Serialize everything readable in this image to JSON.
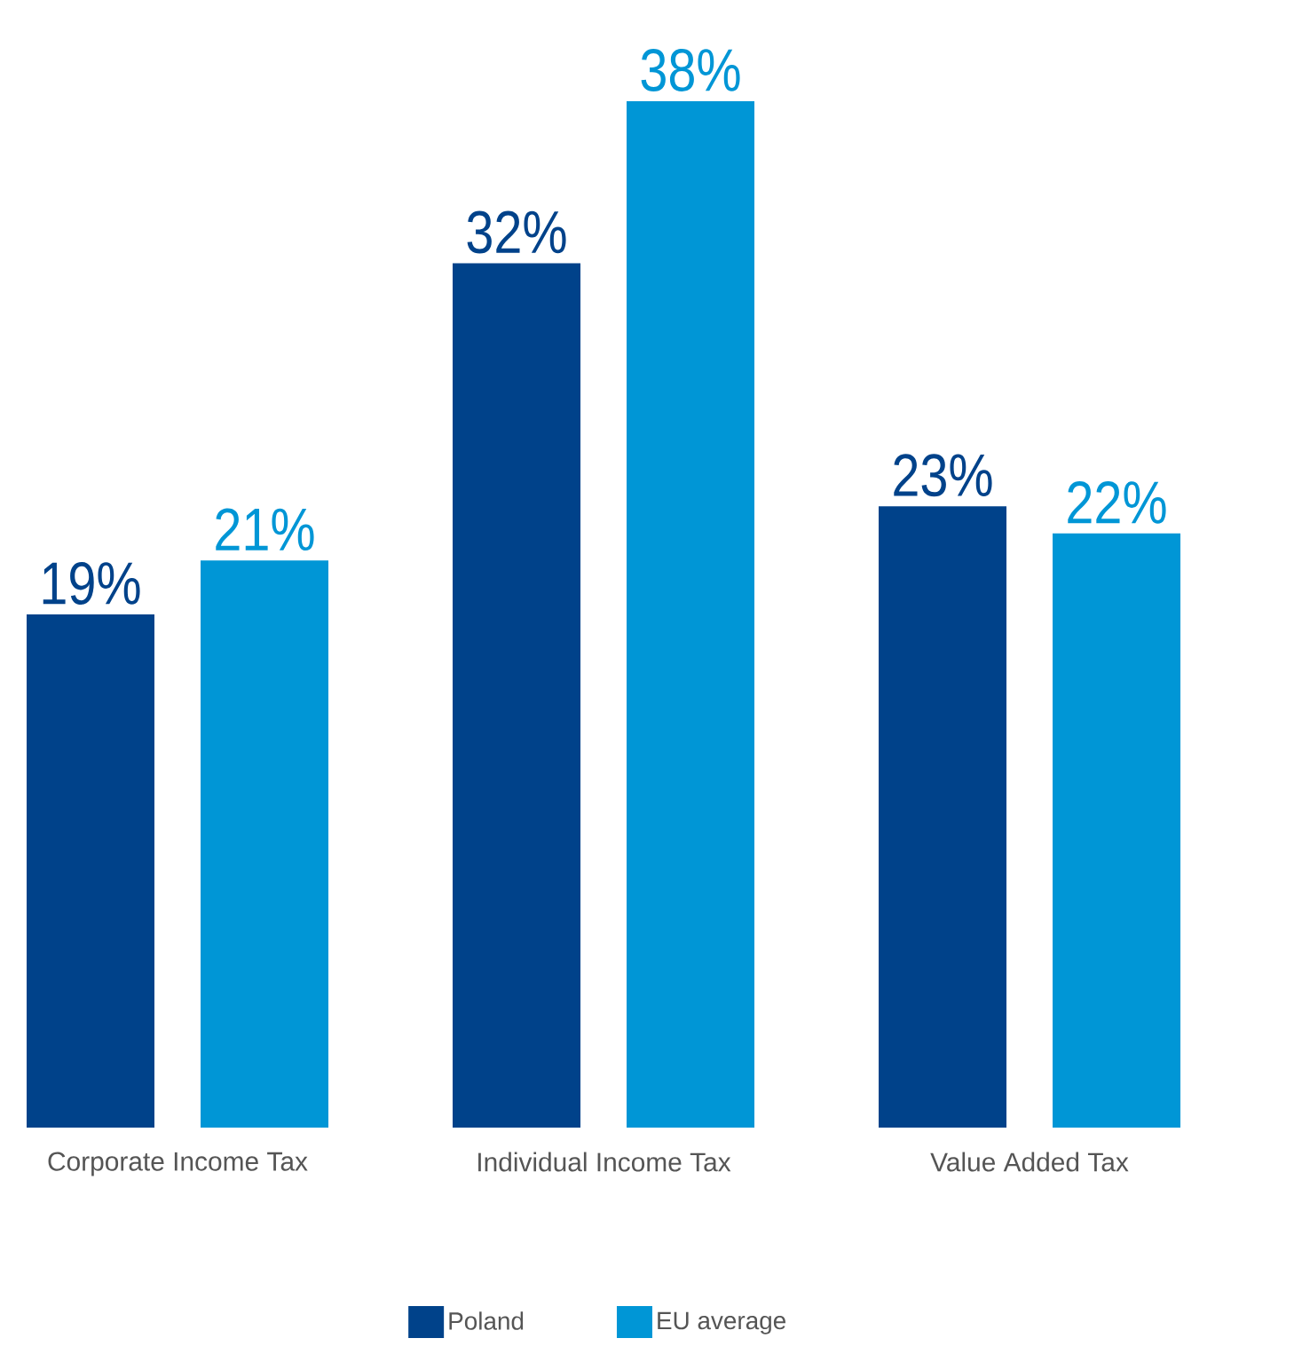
{
  "chart_data": {
    "type": "bar",
    "categories": [
      "Corporate Income Tax",
      "Individual Income Tax",
      "Value Added Tax"
    ],
    "series": [
      {
        "name": "Poland",
        "color": "#00428a",
        "values": [
          19,
          32,
          23
        ],
        "value_labels": [
          "19%",
          "32%",
          "23%"
        ]
      },
      {
        "name": "EU average",
        "color": "#0096d6",
        "values": [
          21,
          38,
          22
        ],
        "value_labels": [
          "21%",
          "38%",
          "22%"
        ]
      }
    ],
    "legend": "bottom"
  }
}
